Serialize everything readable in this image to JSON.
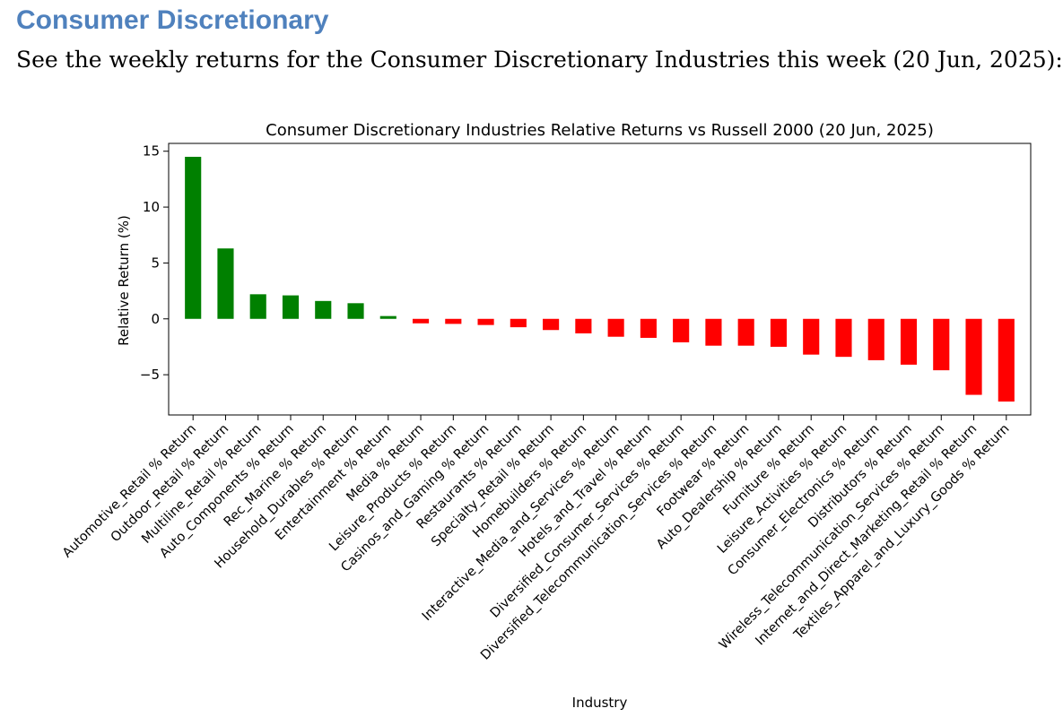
{
  "page": {
    "heading": "Consumer Discretionary",
    "intro": "See the weekly returns for the Consumer Discretionary Industries this week (20 Jun, 2025):"
  },
  "chart_data": {
    "type": "bar",
    "title": "Consumer Discretionary Industries Relative Returns vs Russell 2000 (20 Jun, 2025)",
    "xlabel": "Industry",
    "ylabel": "Relative Return (%)",
    "ylim": [
      -8.6,
      15.7
    ],
    "yticks": [
      -5,
      0,
      5,
      10,
      15
    ],
    "grid": false,
    "colors": {
      "positive": "#008000",
      "negative": "#ff0000"
    },
    "categories": [
      "Automotive_Retail % Return",
      "Outdoor_Retail % Return",
      "Multiline_Retail % Return",
      "Auto_Components % Return",
      "Rec_Marine % Return",
      "Household_Durables % Return",
      "Entertainment % Return",
      "Media % Return",
      "Leisure_Products % Return",
      "Casinos_and_Gaming % Return",
      "Restaurants % Return",
      "Specialty_Retail % Return",
      "Homebuilders % Return",
      "Interactive_Media_and_Services % Return",
      "Hotels_and_Travel % Return",
      "Diversified_Consumer_Services % Return",
      "Diversified_Telecommunication_Services % Return",
      "Footwear % Return",
      "Auto_Dealership % Return",
      "Furniture % Return",
      "Leisure_Activities % Return",
      "Consumer_Electronics % Return",
      "Distributors % Return",
      "Wireless_Telecommunication_Services % Return",
      "Internet_and_Direct_Marketing_Retail % Return",
      "Textiles_Apparel_and_Luxury_Goods % Return"
    ],
    "values": [
      14.5,
      6.3,
      2.2,
      2.1,
      1.6,
      1.4,
      0.25,
      -0.4,
      -0.45,
      -0.55,
      -0.75,
      -1.0,
      -1.3,
      -1.6,
      -1.7,
      -2.1,
      -2.4,
      -2.4,
      -2.5,
      -3.2,
      -3.4,
      -3.7,
      -4.1,
      -4.6,
      -6.8,
      -7.4
    ]
  }
}
